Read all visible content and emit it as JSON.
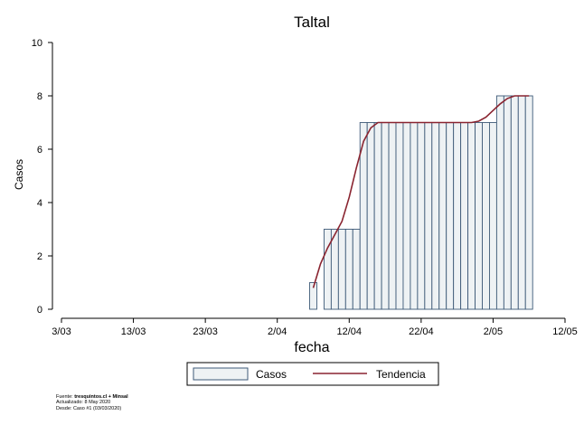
{
  "chart_data": {
    "type": "bar",
    "title": "Taltal",
    "xlabel": "fecha",
    "ylabel": "Casos",
    "ylim": [
      0,
      10
    ],
    "y_ticks": [
      "0",
      "2",
      "4",
      "6",
      "8",
      "10"
    ],
    "x_ticks": [
      "3/03",
      "13/03",
      "23/03",
      "2/04",
      "12/04",
      "22/04",
      "2/05",
      "12/05"
    ],
    "x_tick_dates": [
      "2020-03-03",
      "2020-03-13",
      "2020-03-23",
      "2020-04-02",
      "2020-04-12",
      "2020-04-22",
      "2020-05-02",
      "2020-05-12"
    ],
    "xlim": [
      "2020-03-03",
      "2020-05-12"
    ],
    "grid": false,
    "legend_position": "bottom",
    "colors": {
      "bar_fill": "#eef2f4",
      "bar_stroke": "#3e5a78",
      "trend": "#8a2430",
      "axis": "#000000"
    },
    "series": [
      {
        "name": "Casos",
        "x": [
          "2020-04-07",
          "2020-04-08",
          "2020-04-09",
          "2020-04-10",
          "2020-04-11",
          "2020-04-12",
          "2020-04-13",
          "2020-04-14",
          "2020-04-15",
          "2020-04-16",
          "2020-04-17",
          "2020-04-18",
          "2020-04-19",
          "2020-04-20",
          "2020-04-21",
          "2020-04-22",
          "2020-04-23",
          "2020-04-24",
          "2020-04-25",
          "2020-04-26",
          "2020-04-27",
          "2020-04-28",
          "2020-04-29",
          "2020-04-30",
          "2020-05-01",
          "2020-05-02",
          "2020-05-03",
          "2020-05-04",
          "2020-05-05",
          "2020-05-06",
          "2020-05-07"
        ],
        "values": [
          1,
          0,
          3,
          3,
          3,
          3,
          3,
          7,
          7,
          7,
          7,
          7,
          7,
          7,
          7,
          7,
          7,
          7,
          7,
          7,
          7,
          7,
          7,
          7,
          7,
          7,
          8,
          8,
          8,
          8,
          8
        ]
      },
      {
        "name": "Tendencia",
        "x": [
          "2020-04-07",
          "2020-04-08",
          "2020-04-09",
          "2020-04-10",
          "2020-04-11",
          "2020-04-12",
          "2020-04-13",
          "2020-04-14",
          "2020-04-15",
          "2020-04-16",
          "2020-04-17",
          "2020-04-18",
          "2020-04-19",
          "2020-04-20",
          "2020-04-21",
          "2020-04-22",
          "2020-04-23",
          "2020-04-24",
          "2020-04-25",
          "2020-04-26",
          "2020-04-27",
          "2020-04-28",
          "2020-04-29",
          "2020-04-30",
          "2020-05-01",
          "2020-05-02",
          "2020-05-03",
          "2020-05-04",
          "2020-05-05",
          "2020-05-06",
          "2020-05-07"
        ],
        "values": [
          0.8,
          1.7,
          2.3,
          2.8,
          3.3,
          4.2,
          5.3,
          6.3,
          6.8,
          7.0,
          7.0,
          7.0,
          7.0,
          7.0,
          7.0,
          7.0,
          7.0,
          7.0,
          7.0,
          7.0,
          7.0,
          7.0,
          7.0,
          7.05,
          7.2,
          7.45,
          7.7,
          7.9,
          8.0,
          8.0,
          8.0
        ]
      }
    ]
  },
  "footer": {
    "source_prefix": "Fuente: ",
    "source_bold": "tresquintos.cl + Minsal",
    "updated": "Actualizado: 8 May 2020",
    "since": "Desde: Caso #1  (03/03/2020)"
  }
}
